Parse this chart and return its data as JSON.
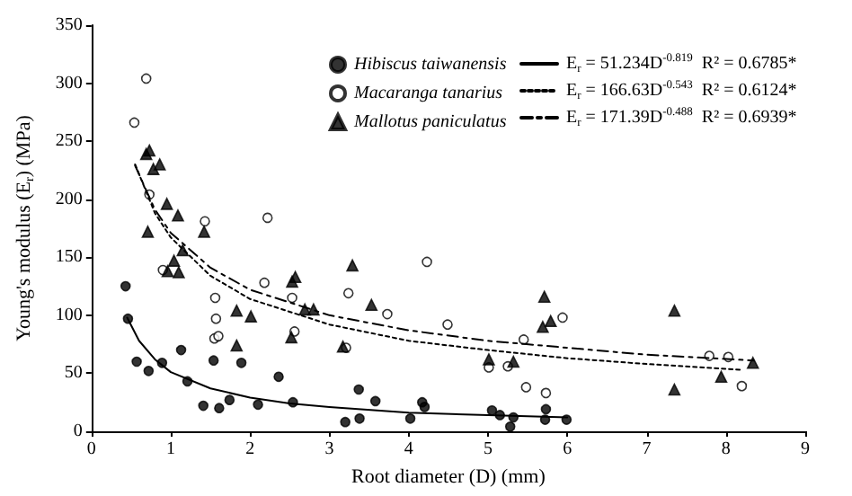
{
  "chart_data": {
    "type": "scatter",
    "xlabel": "Root diameter (D) (mm)",
    "ylabel": "Young's modulus (E$_{r}$) (MPa)",
    "xlim": [
      0,
      9
    ],
    "xticks": [
      0,
      1,
      2,
      3,
      4,
      5,
      6,
      7,
      8,
      9
    ],
    "ylim": [
      0,
      350
    ],
    "yticks": [
      0,
      50,
      100,
      150,
      200,
      250,
      300,
      350
    ],
    "grid": false,
    "legend": "top right",
    "series": [
      {
        "name": "Hibiscus taiwanensis",
        "color": "#000000",
        "marker": "circle",
        "x": [
          0.43,
          0.46,
          0.57,
          0.72,
          0.89,
          1.13,
          1.21,
          1.41,
          1.54,
          1.61,
          1.74,
          1.89,
          2.1,
          2.36,
          2.54,
          3.2,
          3.37,
          3.38,
          3.58,
          4.02,
          4.17,
          4.2,
          5.05,
          5.15,
          5.28,
          5.32,
          5.73,
          5.72,
          5.99
        ],
        "values": [
          125,
          97,
          60,
          52,
          59,
          70,
          43,
          22,
          61,
          20,
          27,
          59,
          23,
          47,
          25,
          8,
          36,
          11,
          26,
          11,
          25,
          21,
          18,
          14,
          4,
          12,
          19,
          10,
          10
        ]
      },
      {
        "name": "Macaranga tanarius",
        "color": "#ffffff",
        "marker": "circle",
        "x": [
          0.54,
          0.69,
          0.73,
          1.43,
          2.22,
          0.9,
          1.56,
          1.57,
          1.55,
          1.6,
          2.18,
          2.53,
          2.56,
          3.24,
          3.21,
          3.73,
          4.23,
          4.49,
          5.01,
          5.25,
          5.45,
          5.48,
          5.73,
          5.94,
          7.79,
          8.03,
          8.2
        ],
        "values": [
          266,
          304,
          204,
          181,
          184,
          139,
          115,
          97,
          80,
          82,
          128,
          115,
          86,
          119,
          72,
          101,
          146,
          92,
          55,
          56,
          79,
          38,
          33,
          98,
          65,
          64,
          39
        ]
      },
      {
        "name": "Mallotus paniculatus",
        "color": "#000000",
        "marker": "triangle",
        "x": [
          0.69,
          0.73,
          0.78,
          0.86,
          0.95,
          1.09,
          0.71,
          1.42,
          1.15,
          0.96,
          1.04,
          1.1,
          2.53,
          2.57,
          2.69,
          2.8,
          3.29,
          3.53,
          1.83,
          2.01,
          1.83,
          2.52,
          3.17,
          5.01,
          5.32,
          5.71,
          5.79,
          5.69,
          7.35,
          7.35,
          7.94,
          8.34
        ],
        "values": [
          239,
          242,
          226,
          230,
          196,
          186,
          172,
          172,
          156,
          138,
          147,
          137,
          129,
          133,
          105,
          105,
          143,
          109,
          104,
          99,
          74,
          81,
          73,
          62,
          60,
          116,
          95,
          90,
          104,
          36,
          47,
          59
        ]
      },
      {
        "type": "line",
        "name": "E$_{r}$ = 51.234D$^{-0.819}$  R² = 0.6785*",
        "color": "#000000",
        "line_style": "solid",
        "x": [
          0.45,
          0.6,
          0.8,
          1,
          1.5,
          2,
          2.5,
          3,
          4,
          5,
          6
        ],
        "values": [
          98,
          78,
          62,
          51,
          37,
          29,
          24,
          21,
          16,
          14,
          12
        ]
      },
      {
        "type": "line",
        "name": "E$_{r}$ = 166.63D$^{-0.543}$  R² = 0.6124*",
        "color": "#000000",
        "line_style": "dotted",
        "x": [
          0.55,
          0.8,
          1,
          1.5,
          2,
          3,
          4,
          5,
          6,
          7,
          8.2
        ],
        "values": [
          230,
          188,
          167,
          134,
          114,
          92,
          78,
          70,
          63,
          58,
          53
        ]
      },
      {
        "type": "line",
        "name": "E$_{r}$ = 171.39D$^{-0.488}$  R² = 0.6939*",
        "color": "#000000",
        "line_style": "dashed",
        "x": [
          0.55,
          0.8,
          1,
          1.5,
          2,
          3,
          4,
          5,
          6,
          7,
          8.35
        ],
        "values": [
          229,
          191,
          171,
          141,
          122,
          100,
          87,
          78,
          72,
          66,
          61
        ]
      }
    ]
  }
}
